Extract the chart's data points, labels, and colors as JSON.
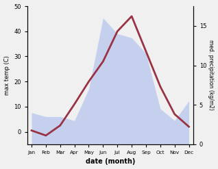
{
  "months": [
    "Jan",
    "Feb",
    "Mar",
    "Apr",
    "May",
    "Jun",
    "Jul",
    "Aug",
    "Sep",
    "Oct",
    "Nov",
    "Dec"
  ],
  "temp": [
    0.5,
    -1.5,
    2.5,
    11,
    20,
    28,
    40,
    46,
    32,
    18,
    7,
    2
  ],
  "precip": [
    4.0,
    3.5,
    3.5,
    3.0,
    7.0,
    16.0,
    14.0,
    13.5,
    11.5,
    4.5,
    3.0,
    5.5
  ],
  "temp_color": "#993344",
  "precip_fill_color": "#c5d0ee",
  "ylim_left": [
    -5,
    50
  ],
  "ylim_right": [
    0,
    17.5
  ],
  "yticks_left": [
    0,
    10,
    20,
    30,
    40,
    50
  ],
  "yticks_right": [
    0,
    5,
    10,
    15
  ],
  "ylabel_left": "max temp (C)",
  "ylabel_right": "med. precipitation (kg/m2)",
  "xlabel": "date (month)",
  "bg_color": "#f0f0f0",
  "plot_bg_color": "#ffffff",
  "temp_linewidth": 2.0
}
